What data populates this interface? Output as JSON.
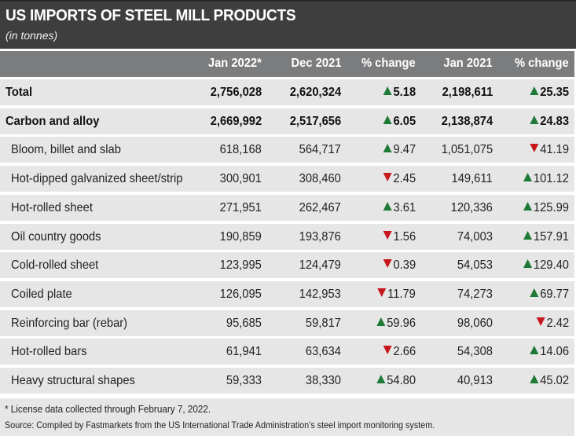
{
  "title": "US IMPORTS OF STEEL MILL PRODUCTS",
  "subtitle": "(in tonnes)",
  "colors": {
    "title_bg": "#3e3e3e",
    "header_bg": "#7b7c7e",
    "row_bg": "#e6e6e6",
    "up": "#1e7a36",
    "down": "#c8161d"
  },
  "icons": {
    "up": "triangle-up-icon",
    "down": "triangle-down-icon"
  },
  "chart_data": {
    "type": "table",
    "title": "US IMPORTS OF STEEL MILL PRODUCTS",
    "subtitle": "(in tonnes)",
    "columns": [
      "",
      "Jan 2022*",
      "Dec 2021",
      "% change",
      "Jan 2021",
      "% change"
    ],
    "rows": [
      {
        "label": "Total",
        "bold": true,
        "jan2022": "2,756,028",
        "dec2021": "2,620,324",
        "chg_mom": {
          "dir": "up",
          "value": "5.18"
        },
        "jan2021": "2,198,611",
        "chg_yoy": {
          "dir": "up",
          "value": "25.35"
        }
      },
      {
        "label": "Carbon and alloy",
        "bold": true,
        "jan2022": "2,669,992",
        "dec2021": "2,517,656",
        "chg_mom": {
          "dir": "up",
          "value": "6.05"
        },
        "jan2021": "2,138,874",
        "chg_yoy": {
          "dir": "up",
          "value": "24.83"
        }
      },
      {
        "label": "Bloom, billet and slab",
        "bold": false,
        "jan2022": "618,168",
        "dec2021": "564,717",
        "chg_mom": {
          "dir": "up",
          "value": "9.47"
        },
        "jan2021": "1,051,075",
        "chg_yoy": {
          "dir": "down",
          "value": "41.19"
        }
      },
      {
        "label": "Hot-dipped galvanized sheet/strip",
        "bold": false,
        "jan2022": "300,901",
        "dec2021": "308,460",
        "chg_mom": {
          "dir": "down",
          "value": "2.45"
        },
        "jan2021": "149,611",
        "chg_yoy": {
          "dir": "up",
          "value": "101.12"
        }
      },
      {
        "label": "Hot-rolled sheet",
        "bold": false,
        "jan2022": "271,951",
        "dec2021": "262,467",
        "chg_mom": {
          "dir": "up",
          "value": "3.61"
        },
        "jan2021": "120,336",
        "chg_yoy": {
          "dir": "up",
          "value": "125.99"
        }
      },
      {
        "label": "Oil country goods",
        "bold": false,
        "jan2022": "190,859",
        "dec2021": "193,876",
        "chg_mom": {
          "dir": "down",
          "value": "1.56"
        },
        "jan2021": "74,003",
        "chg_yoy": {
          "dir": "up",
          "value": "157.91"
        }
      },
      {
        "label": "Cold-rolled sheet",
        "bold": false,
        "jan2022": "123,995",
        "dec2021": "124,479",
        "chg_mom": {
          "dir": "down",
          "value": "0.39"
        },
        "jan2021": "54,053",
        "chg_yoy": {
          "dir": "up",
          "value": "129.40"
        }
      },
      {
        "label": "Coiled plate",
        "bold": false,
        "jan2022": "126,095",
        "dec2021": "142,953",
        "chg_mom": {
          "dir": "down",
          "value": "11.79"
        },
        "jan2021": "74,273",
        "chg_yoy": {
          "dir": "up",
          "value": "69.77"
        }
      },
      {
        "label": "Reinforcing bar (rebar)",
        "bold": false,
        "jan2022": "95,685",
        "dec2021": "59,817",
        "chg_mom": {
          "dir": "up",
          "value": "59.96"
        },
        "jan2021": "98,060",
        "chg_yoy": {
          "dir": "down",
          "value": "2.42"
        }
      },
      {
        "label": "Hot-rolled bars",
        "bold": false,
        "jan2022": "61,941",
        "dec2021": "63,634",
        "chg_mom": {
          "dir": "down",
          "value": "2.66"
        },
        "jan2021": "54,308",
        "chg_yoy": {
          "dir": "up",
          "value": "14.06"
        }
      },
      {
        "label": "Heavy structural shapes",
        "bold": false,
        "jan2022": "59,333",
        "dec2021": "38,330",
        "chg_mom": {
          "dir": "up",
          "value": "54.80"
        },
        "jan2021": "40,913",
        "chg_yoy": {
          "dir": "up",
          "value": "45.02"
        }
      }
    ],
    "footnote": "* License data collected through February 7, 2022.",
    "source": "Source: Compiled by Fastmarkets from the US International Trade Administration’s steel import monitoring system."
  }
}
